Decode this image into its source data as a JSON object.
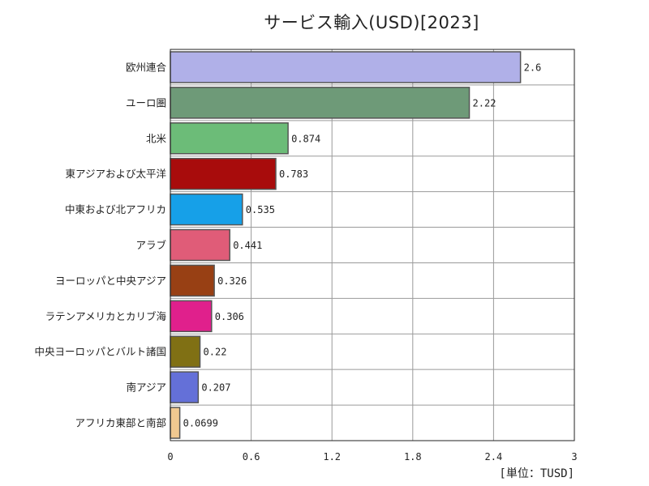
{
  "chart_data": {
    "type": "bar",
    "orientation": "horizontal",
    "title": "サービス輸入(USD)[2023]",
    "unit_label": "[単位：TUSD]",
    "categories": [
      "欧州連合",
      "ユーロ圏",
      "北米",
      "東アジアおよび太平洋",
      "中東および北アフリカ",
      "アラブ",
      "ヨーロッパと中央アジア",
      "ラテンアメリカとカリブ海",
      "中央ヨーロッパとバルト諸国",
      "南アジア",
      "アフリカ東部と南部"
    ],
    "values": [
      2.6,
      2.22,
      0.874,
      0.783,
      0.535,
      0.441,
      0.326,
      0.306,
      0.22,
      0.207,
      0.0699
    ],
    "value_labels": [
      "2.6",
      "2.22",
      "0.874",
      "0.783",
      "0.535",
      "0.441",
      "0.326",
      "0.306",
      "0.22",
      "0.207",
      "0.0699"
    ],
    "colors": [
      "#b0b0e8",
      "#6e9a78",
      "#6cbc78",
      "#a80c0c",
      "#16a0e8",
      "#e05c78",
      "#984014",
      "#e0208c",
      "#807014",
      "#6470d8",
      "#f0c890"
    ],
    "xlim": [
      0,
      3
    ],
    "xticks": [
      0,
      0.6,
      1.2,
      1.8,
      2.4,
      3
    ],
    "xtick_labels": [
      "0",
      "0.6",
      "1.2",
      "1.8",
      "2.4",
      "3"
    ],
    "grid": true,
    "legend": "none"
  }
}
